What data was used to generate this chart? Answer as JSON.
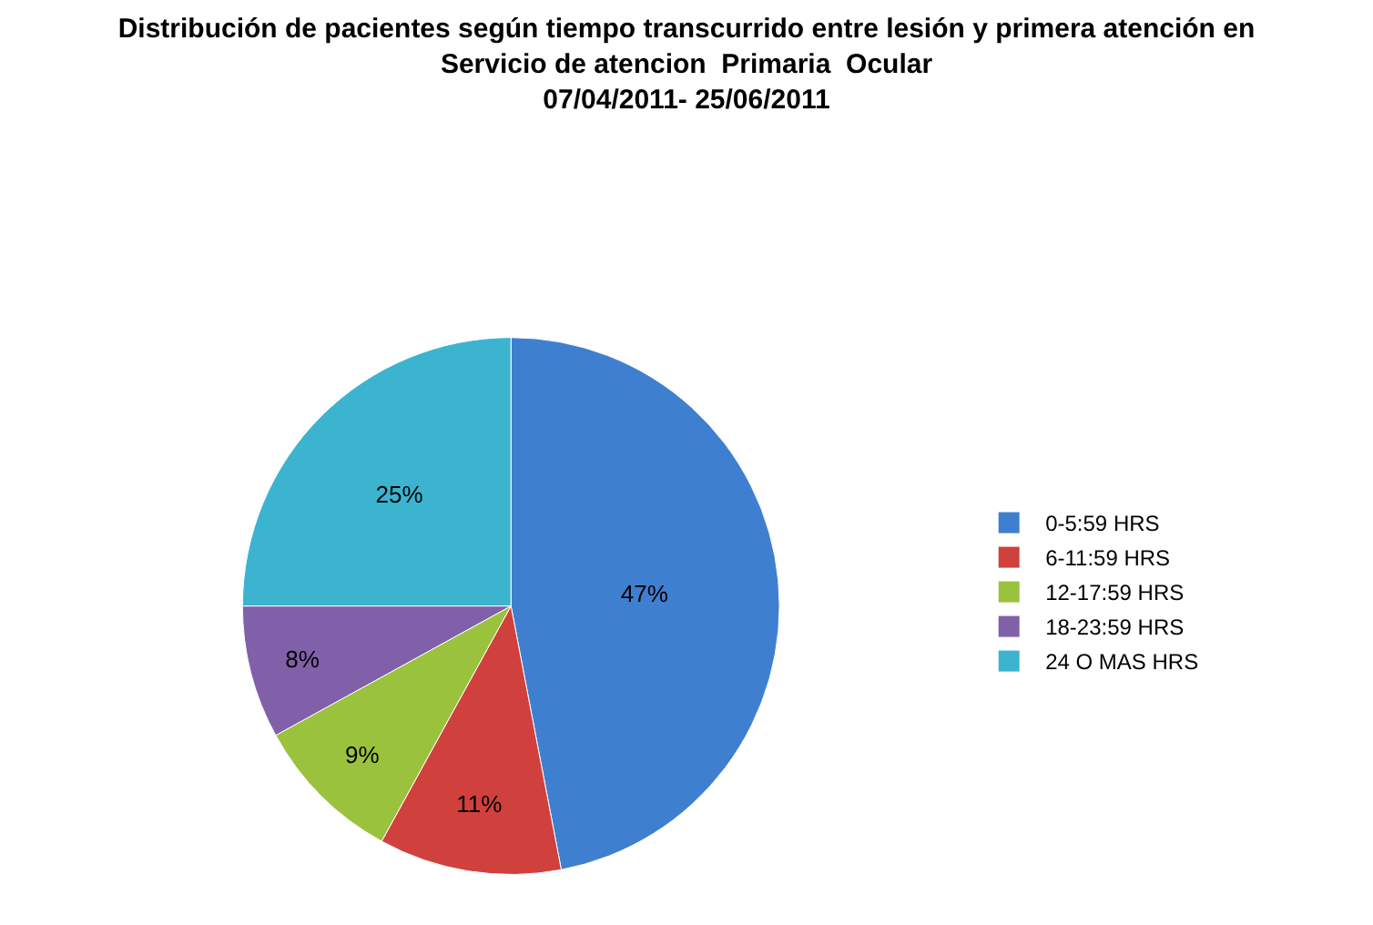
{
  "chart_data": {
    "type": "pie",
    "title": "Distribución de pacientes según tiempo transcurrido entre lesión y primera atención en\nServicio de atencion  Primaria  Ocular\n07/04/2011- 25/06/2011",
    "categories": [
      "0-5:59 HRS",
      "6-11:59 HRS",
      "12-17:59 HRS",
      "18-23:59 HRS",
      "24 O MAS HRS"
    ],
    "values": [
      47,
      11,
      9,
      8,
      25
    ],
    "value_labels": [
      "47%",
      "11%",
      "9%",
      "8%",
      "25%"
    ],
    "colors": [
      "#3f7fd0",
      "#d0403c",
      "#9bc23c",
      "#8060a8",
      "#3cb4d0"
    ],
    "legend": "right"
  }
}
